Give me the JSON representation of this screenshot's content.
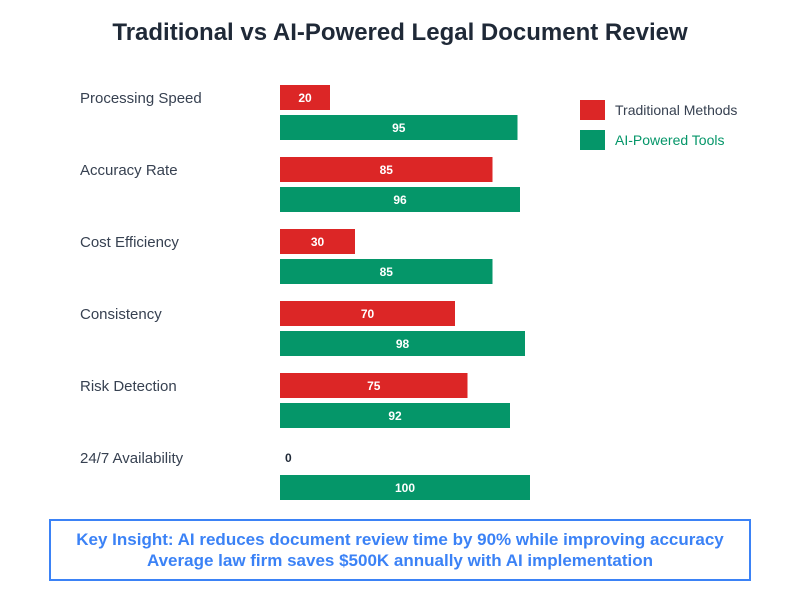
{
  "chart_data": {
    "type": "bar",
    "orientation": "horizontal",
    "title": "Traditional vs AI-Powered Legal Document Review",
    "categories": [
      "Processing Speed",
      "Accuracy Rate",
      "Cost Efficiency",
      "Consistency",
      "Risk Detection",
      "24/7 Availability"
    ],
    "series": [
      {
        "name": "Traditional Methods",
        "color": "#dc2626",
        "values": [
          20,
          85,
          30,
          70,
          75,
          0
        ]
      },
      {
        "name": "AI-Powered Tools",
        "color": "#059669",
        "values": [
          95,
          96,
          85,
          98,
          92,
          100
        ]
      }
    ],
    "xlim": [
      0,
      100
    ],
    "legend": "top-right"
  },
  "insight": {
    "line1": "Key Insight: AI reduces document review time by 90% while improving accuracy",
    "line2": "Average law firm saves $500K annually with AI implementation",
    "color": "#3b82f6"
  }
}
